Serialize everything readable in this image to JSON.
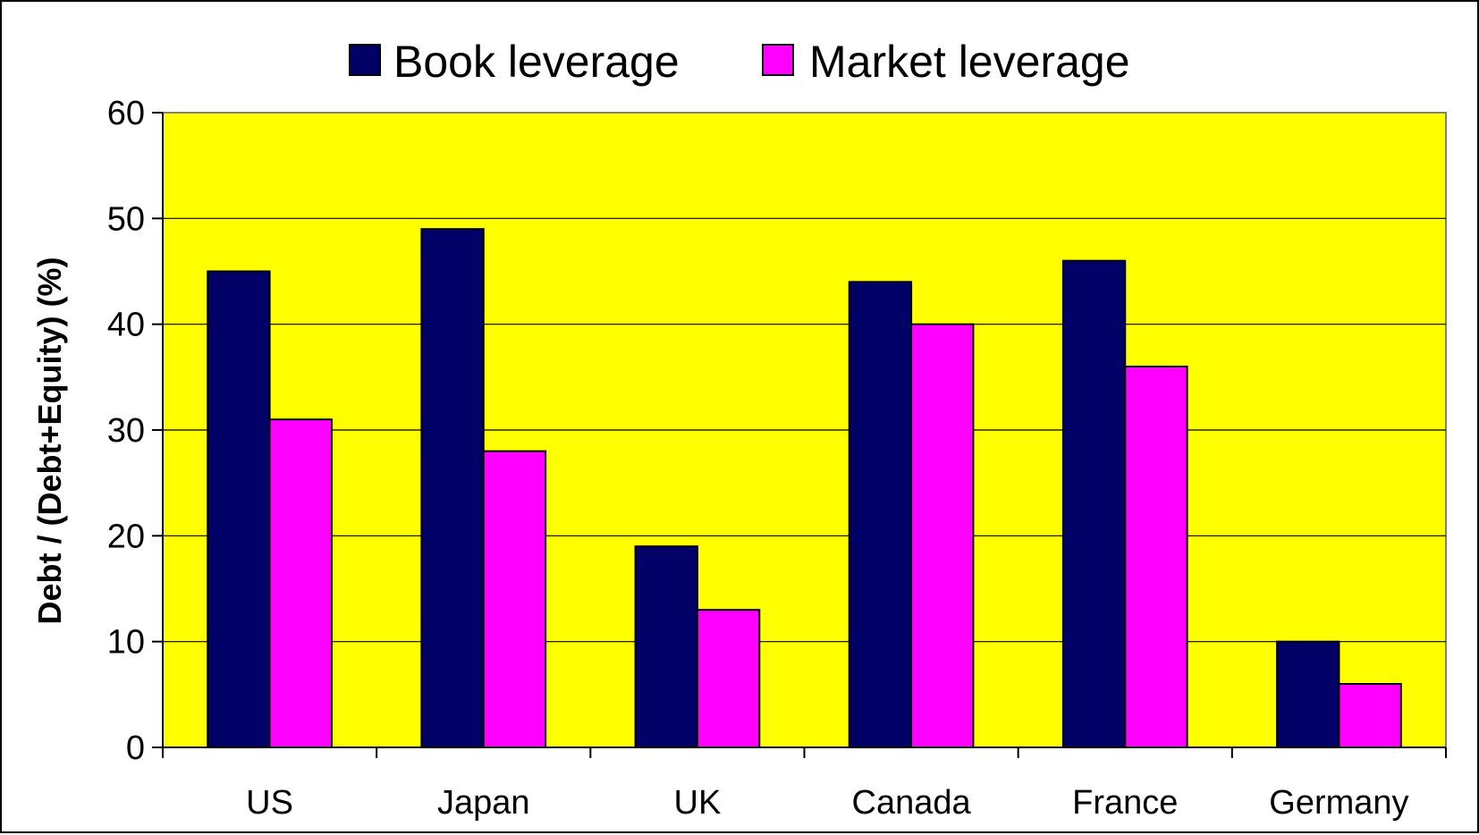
{
  "chart_data": {
    "type": "bar",
    "title": "",
    "xlabel": "",
    "ylabel": "Debt / (Debt+Equity) (%)",
    "categories": [
      "US",
      "Japan",
      "UK",
      "Canada",
      "France",
      "Germany"
    ],
    "series": [
      {
        "name": "Book leverage",
        "values": [
          45,
          49,
          19,
          44,
          46,
          10
        ],
        "color": "#000066"
      },
      {
        "name": "Market leverage",
        "values": [
          31,
          28,
          13,
          40,
          36,
          6
        ],
        "color": "#FF00FF"
      }
    ],
    "ylim": [
      0,
      60
    ],
    "yticks": [
      0,
      10,
      20,
      30,
      40,
      50,
      60
    ],
    "grid": true,
    "legend_position": "top",
    "plot_background": "#FFFF00"
  }
}
